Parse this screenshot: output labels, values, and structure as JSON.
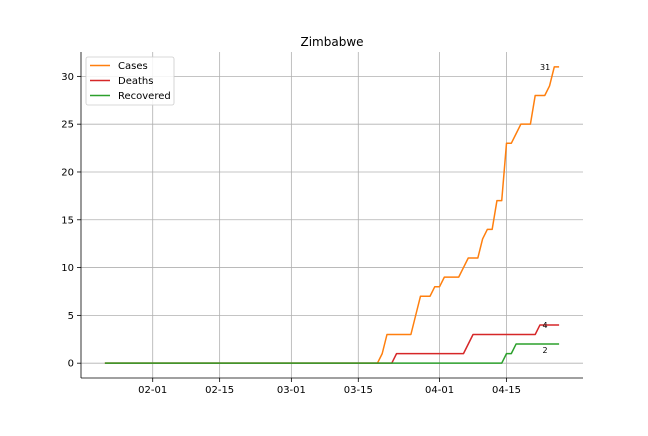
{
  "chart_data": {
    "type": "line",
    "title": "Zimbabwe",
    "xlabel": "",
    "ylabel": "",
    "x_ticks": [
      "02-01",
      "02-15",
      "03-01",
      "03-15",
      "04-01",
      "04-15"
    ],
    "x_tick_dates": [
      "2020-02-01",
      "2020-02-15",
      "2020-03-01",
      "2020-03-15",
      "2020-04-01",
      "2020-04-15"
    ],
    "y_ticks": [
      0,
      5,
      10,
      15,
      20,
      25,
      30
    ],
    "xlim": [
      "2020-01-17",
      "2020-05-01"
    ],
    "ylim": [
      -1.55,
      32.55
    ],
    "grid": true,
    "legend_position": "top-left",
    "series": [
      {
        "name": "Cases",
        "color": "#ff7f0e",
        "end_label": "31",
        "points": [
          [
            "2020-01-22",
            0
          ],
          [
            "2020-03-19",
            0
          ],
          [
            "2020-03-20",
            1
          ],
          [
            "2020-03-21",
            3
          ],
          [
            "2020-03-26",
            3
          ],
          [
            "2020-03-27",
            5
          ],
          [
            "2020-03-28",
            7
          ],
          [
            "2020-03-30",
            7
          ],
          [
            "2020-03-31",
            8
          ],
          [
            "2020-04-01",
            8
          ],
          [
            "2020-04-02",
            9
          ],
          [
            "2020-04-05",
            9
          ],
          [
            "2020-04-06",
            10
          ],
          [
            "2020-04-07",
            11
          ],
          [
            "2020-04-09",
            11
          ],
          [
            "2020-04-10",
            13
          ],
          [
            "2020-04-11",
            14
          ],
          [
            "2020-04-12",
            14
          ],
          [
            "2020-04-13",
            17
          ],
          [
            "2020-04-14",
            17
          ],
          [
            "2020-04-15",
            23
          ],
          [
            "2020-04-16",
            23
          ],
          [
            "2020-04-17",
            24
          ],
          [
            "2020-04-18",
            25
          ],
          [
            "2020-04-20",
            25
          ],
          [
            "2020-04-21",
            28
          ],
          [
            "2020-04-23",
            28
          ],
          [
            "2020-04-24",
            29
          ],
          [
            "2020-04-25",
            31
          ],
          [
            "2020-04-26",
            31
          ]
        ]
      },
      {
        "name": "Deaths",
        "color": "#d62728",
        "end_label": "4",
        "points": [
          [
            "2020-01-22",
            0
          ],
          [
            "2020-03-22",
            0
          ],
          [
            "2020-03-23",
            1
          ],
          [
            "2020-04-06",
            1
          ],
          [
            "2020-04-08",
            3
          ],
          [
            "2020-04-21",
            3
          ],
          [
            "2020-04-22",
            4
          ],
          [
            "2020-04-26",
            4
          ]
        ]
      },
      {
        "name": "Recovered",
        "color": "#2ca02c",
        "end_label": "2",
        "points": [
          [
            "2020-01-22",
            0
          ],
          [
            "2020-04-14",
            0
          ],
          [
            "2020-04-15",
            1
          ],
          [
            "2020-04-16",
            1
          ],
          [
            "2020-04-17",
            2
          ],
          [
            "2020-04-26",
            2
          ]
        ]
      }
    ]
  }
}
